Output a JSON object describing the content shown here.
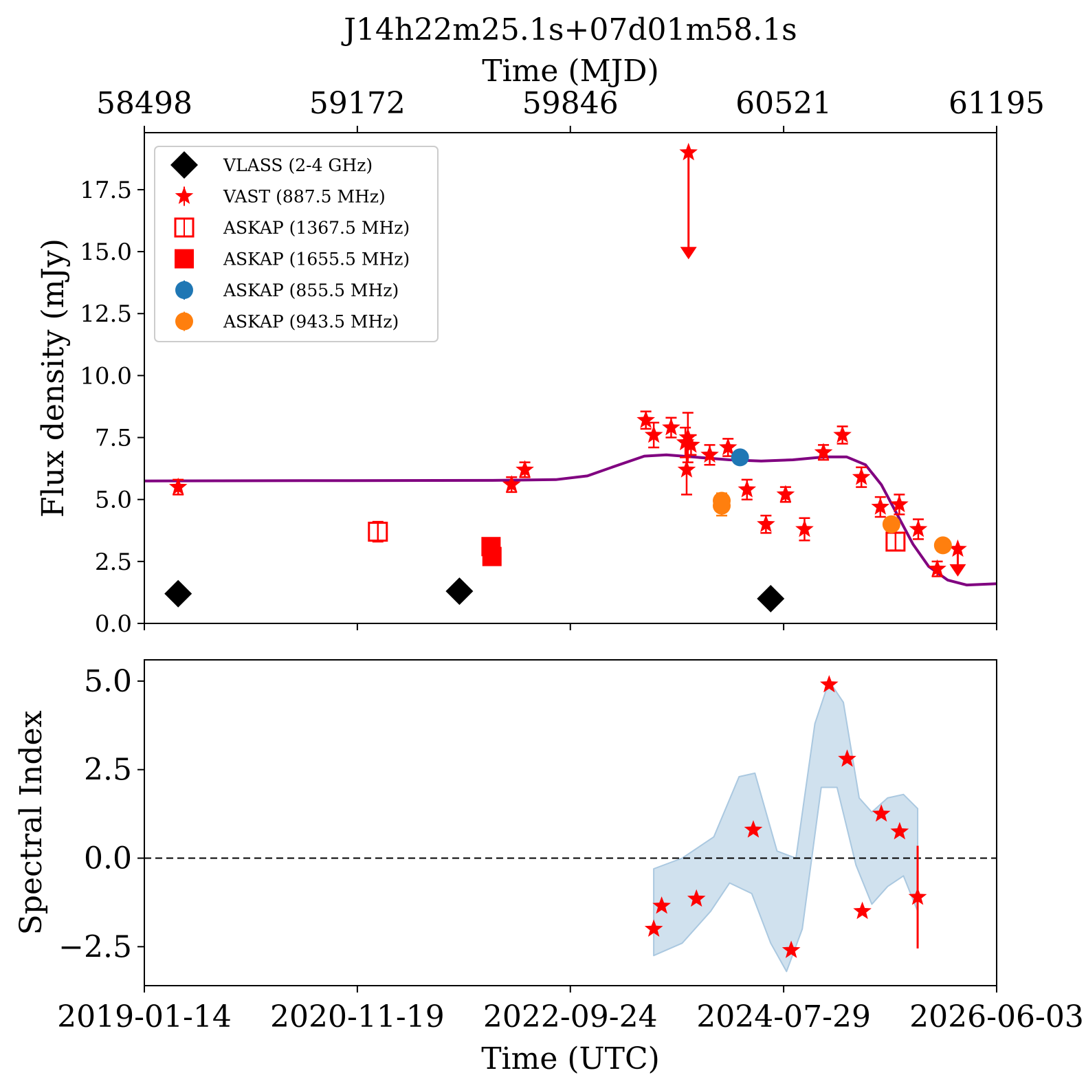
{
  "chart_data": [
    {
      "type": "scatter",
      "title": "J14h22m25.1s+07d01m58.1s",
      "x_top_label": "Time (MJD)",
      "x_top_ticks": [
        "58498",
        "59172",
        "59846",
        "60521",
        "61195"
      ],
      "ylabel": "Flux density (mJy)",
      "yticks": [
        "0.0",
        "2.5",
        "5.0",
        "7.5",
        "10.0",
        "12.5",
        "15.0",
        "17.5"
      ],
      "xlim_mjd": [
        58498,
        61195
      ],
      "ylim": [
        0,
        19.8
      ],
      "legend_position": "upper-left",
      "series": [
        {
          "name": "VLASS (2-4 GHz)",
          "color": "#000000",
          "marker": "diamond",
          "points": [
            [
              58605,
              1.2
            ],
            [
              59495,
              1.3
            ],
            [
              60480,
              1.0
            ]
          ]
        },
        {
          "name": "VAST (887.5 MHz)",
          "color": "#ff0000",
          "marker": "star",
          "points": [
            [
              58605,
              5.5,
              0.3
            ],
            [
              59660,
              5.6,
              0.3
            ],
            [
              59702,
              6.2,
              0.3
            ],
            [
              60085,
              8.2,
              0.35
            ],
            [
              60110,
              7.6,
              0.5
            ],
            [
              60165,
              7.9,
              0.4
            ],
            [
              60210,
              7.3,
              0.6
            ],
            [
              60214,
              6.2,
              1.0
            ],
            [
              60218,
              7.5,
              1.0
            ],
            [
              60228,
              7.2,
              0.4
            ],
            [
              60287,
              6.8,
              0.4
            ],
            [
              60345,
              7.1,
              0.35
            ],
            [
              60405,
              5.4,
              0.4
            ],
            [
              60465,
              4.0,
              0.35
            ],
            [
              60527,
              5.2,
              0.3
            ],
            [
              60587,
              3.8,
              0.45
            ],
            [
              60647,
              6.9,
              0.3
            ],
            [
              60707,
              7.6,
              0.35
            ],
            [
              60767,
              5.9,
              0.4
            ],
            [
              60827,
              4.7,
              0.4
            ],
            [
              60887,
              4.8,
              0.4
            ],
            [
              60947,
              3.8,
              0.4
            ],
            [
              61007,
              2.2,
              0.3
            ]
          ],
          "upper_limits": [
            [
              60220,
              19.0
            ],
            [
              61072,
              3.0
            ]
          ]
        },
        {
          "name": "ASKAP (1367.5 MHz)",
          "color": "#ff0000",
          "marker": "open-square",
          "points": [
            [
              59237,
              3.7,
              0.4
            ],
            [
              60875,
              3.3,
              0.35
            ]
          ]
        },
        {
          "name": "ASKAP (1655.5 MHz)",
          "color": "#ff0000",
          "marker": "filled-square",
          "points": [
            [
              59595,
              3.1,
              0.2
            ],
            [
              59598,
              2.7,
              0.2
            ]
          ]
        },
        {
          "name": "ASKAP (855.5 MHz)",
          "color": "#1f77b4",
          "marker": "circle",
          "points": [
            [
              60383,
              6.7,
              0.2
            ]
          ]
        },
        {
          "name": "ASKAP (943.5 MHz)",
          "color": "#ff7f0e",
          "marker": "circle",
          "points": [
            [
              60325,
              4.95,
              0.3
            ],
            [
              60325,
              4.75,
              0.4
            ],
            [
              60862,
              4.0,
              0.2
            ],
            [
              61025,
              3.15,
              0.2
            ]
          ]
        }
      ],
      "model_curve": {
        "color": "#800080",
        "points": [
          [
            58498,
            5.75
          ],
          [
            59000,
            5.76
          ],
          [
            59600,
            5.77
          ],
          [
            59800,
            5.8
          ],
          [
            59900,
            5.95
          ],
          [
            60000,
            6.4
          ],
          [
            60080,
            6.75
          ],
          [
            60150,
            6.8
          ],
          [
            60250,
            6.7
          ],
          [
            60350,
            6.6
          ],
          [
            60450,
            6.55
          ],
          [
            60550,
            6.6
          ],
          [
            60650,
            6.72
          ],
          [
            60720,
            6.72
          ],
          [
            60780,
            6.4
          ],
          [
            60830,
            5.6
          ],
          [
            60880,
            4.4
          ],
          [
            60930,
            3.2
          ],
          [
            60980,
            2.3
          ],
          [
            61040,
            1.75
          ],
          [
            61100,
            1.55
          ],
          [
            61195,
            1.6
          ]
        ]
      }
    },
    {
      "type": "scatter",
      "xlabel": "Time (UTC)",
      "xticks": [
        "2019-01-14",
        "2020-11-19",
        "2022-09-24",
        "2024-07-29",
        "2026-06-03"
      ],
      "ylabel": "Spectral Index",
      "yticks": [
        "−2.5",
        "0.0",
        "2.5",
        "5.0"
      ],
      "xlim_mjd": [
        58498,
        61195
      ],
      "ylim": [
        -3.6,
        5.6
      ],
      "zero_line": {
        "value": 0,
        "style": "dashed",
        "color": "#000000"
      },
      "series": [
        {
          "name": "",
          "color": "#ff0000",
          "marker": "star",
          "points": [
            [
              60110,
              -2.0
            ],
            [
              60135,
              -1.35
            ],
            [
              60245,
              -1.15
            ],
            [
              60425,
              0.8
            ],
            [
              60545,
              -2.6
            ],
            [
              60665,
              4.9
            ],
            [
              60722,
              2.8
            ],
            [
              60770,
              -1.5
            ],
            [
              60830,
              1.25
            ],
            [
              60888,
              0.75
            ],
            [
              60945,
              -1.1
            ]
          ]
        }
      ],
      "band": {
        "color": "#aac8e0",
        "upper": [
          [
            60110,
            -0.3
          ],
          [
            60200,
            0.0
          ],
          [
            60300,
            0.6
          ],
          [
            60380,
            2.3
          ],
          [
            60430,
            2.4
          ],
          [
            60500,
            0.2
          ],
          [
            60560,
            0.0
          ],
          [
            60620,
            3.8
          ],
          [
            60665,
            5.0
          ],
          [
            60710,
            4.4
          ],
          [
            60760,
            1.7
          ],
          [
            60800,
            1.3
          ],
          [
            60850,
            1.7
          ],
          [
            60900,
            1.8
          ],
          [
            60945,
            1.4
          ]
        ],
        "lower": [
          [
            60110,
            -2.75
          ],
          [
            60200,
            -2.4
          ],
          [
            60290,
            -1.5
          ],
          [
            60350,
            -0.7
          ],
          [
            60420,
            -1.0
          ],
          [
            60480,
            -2.4
          ],
          [
            60530,
            -3.2
          ],
          [
            60580,
            -2.0
          ],
          [
            60640,
            2.0
          ],
          [
            60690,
            2.0
          ],
          [
            60750,
            -0.2
          ],
          [
            60800,
            -1.3
          ],
          [
            60850,
            -0.8
          ],
          [
            60900,
            -0.5
          ],
          [
            60945,
            -1.5
          ]
        ]
      }
    }
  ]
}
